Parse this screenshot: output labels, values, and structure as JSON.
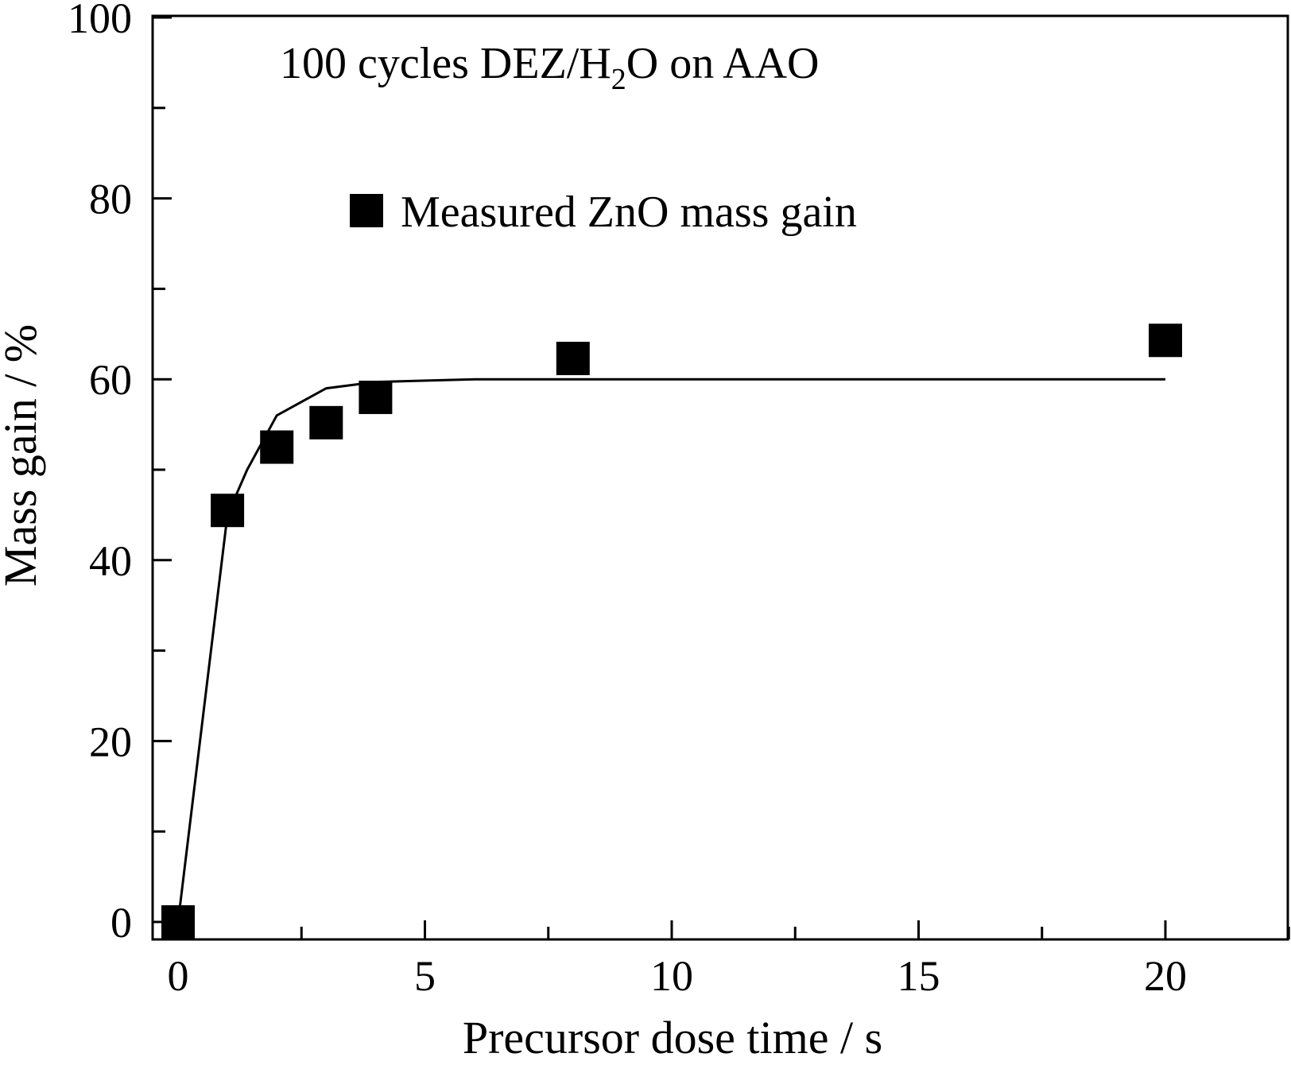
{
  "chart_data": {
    "type": "scatter",
    "title": "",
    "annotation": {
      "prefix": "100 cycles DEZ/H",
      "subscript": "2",
      "suffix": "O on AAO"
    },
    "xlabel": "Precursor dose time / s",
    "ylabel": "Mass gain / %",
    "xlim": [
      -1,
      23
    ],
    "ylim": [
      -2,
      100
    ],
    "x_major_ticks": [
      0,
      5,
      10,
      15,
      20
    ],
    "x_tick_labels": [
      "0",
      "5",
      "10",
      "15",
      "20"
    ],
    "x_minor_ticks": [
      2.5,
      7.5,
      12.5,
      17.5,
      22.5
    ],
    "y_major_ticks": [
      0,
      20,
      40,
      60,
      80,
      100
    ],
    "y_tick_labels": [
      "0",
      "20",
      "40",
      "60",
      "80",
      "100"
    ],
    "y_minor_ticks": [
      10,
      30,
      50,
      70,
      90
    ],
    "grid": false,
    "legend_position": "top-center",
    "series": [
      {
        "name": "Measured ZnO mass gain",
        "kind": "scatter",
        "marker": "square",
        "color": "#000000",
        "x": [
          0,
          1,
          2,
          3,
          4,
          8,
          20
        ],
        "y": [
          0,
          45.5,
          52.5,
          55.2,
          58,
          62.3,
          64.3
        ]
      },
      {
        "kind": "line",
        "color": "#000000",
        "x": [
          0,
          1,
          1.4,
          2,
          3,
          4,
          6,
          8,
          20
        ],
        "y": [
          0,
          45,
          50,
          56,
          59,
          59.7,
          60,
          60,
          60
        ]
      }
    ]
  }
}
